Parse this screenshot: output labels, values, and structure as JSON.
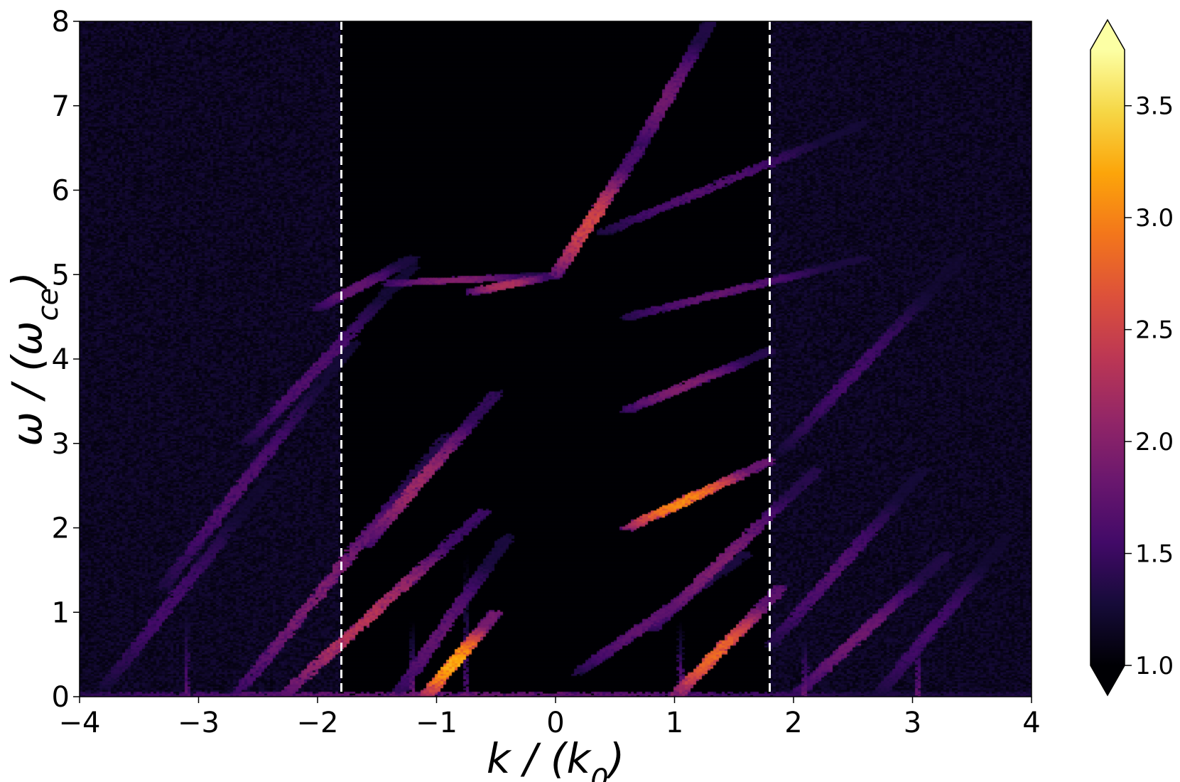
{
  "chart_data": {
    "type": "heatmap",
    "title": "",
    "xlabel": "k / (k_0)",
    "ylabel": "ω / (ω_ce)",
    "xlim": [
      -4,
      4
    ],
    "ylim": [
      0,
      8
    ],
    "x_ticks": [
      -4,
      -3,
      -2,
      -1,
      0,
      1,
      2,
      3,
      4
    ],
    "x_tick_labels": [
      "−4",
      "−3",
      "−2",
      "−1",
      "0",
      "1",
      "2",
      "3",
      "4"
    ],
    "y_ticks": [
      0,
      1,
      2,
      3,
      4,
      5,
      6,
      7,
      8
    ],
    "y_tick_labels": [
      "0",
      "1",
      "2",
      "3",
      "4",
      "5",
      "6",
      "7",
      "8"
    ],
    "colorbar": {
      "colormap": "inferno",
      "vmin": 1.0,
      "vmax": 3.75,
      "extend": "both",
      "ticks": [
        1.0,
        1.5,
        2.0,
        2.5,
        3.0,
        3.5
      ],
      "tick_labels": [
        "1.0",
        "1.5",
        "2.0",
        "2.5",
        "3.0",
        "3.5"
      ]
    },
    "vertical_lines": [
      {
        "x": -1.8,
        "style": "dashed",
        "color": "#ffffff"
      },
      {
        "x": 1.8,
        "style": "dashed",
        "color": "#ffffff"
      }
    ],
    "features": [
      {
        "kind": "line",
        "x0": -2.3,
        "y0": 0.0,
        "x1": -0.6,
        "y1": 2.2,
        "peak": 2.4
      },
      {
        "kind": "line",
        "x0": -2.7,
        "y0": 0.0,
        "x1": -0.9,
        "y1": 3.1,
        "peak": 2.0
      },
      {
        "kind": "line",
        "x0": -1.1,
        "y0": 0.0,
        "x1": -0.5,
        "y1": 1.0,
        "peak": 3.3
      },
      {
        "kind": "line",
        "x0": -1.35,
        "y0": 0.0,
        "x1": -0.4,
        "y1": 1.9,
        "peak": 1.8
      },
      {
        "kind": "line",
        "x0": -1.6,
        "y0": 1.8,
        "x1": -0.5,
        "y1": 3.6,
        "peak": 2.2
      },
      {
        "kind": "line",
        "x0": -3.3,
        "y0": 1.3,
        "x1": -1.7,
        "y1": 4.2,
        "peak": 1.7
      },
      {
        "kind": "line",
        "x0": -2.6,
        "y0": 3.0,
        "x1": -1.2,
        "y1": 5.1,
        "peak": 1.7
      },
      {
        "kind": "line",
        "x0": -2.0,
        "y0": 4.6,
        "x1": -1.2,
        "y1": 5.2,
        "peak": 1.8
      },
      {
        "kind": "line",
        "x0": -1.4,
        "y0": 4.9,
        "x1": 0.0,
        "y1": 5.0,
        "peak": 2.0
      },
      {
        "kind": "line",
        "x0": -0.7,
        "y0": 4.8,
        "x1": 0.0,
        "y1": 5.0,
        "peak": 2.3
      },
      {
        "kind": "line",
        "x0": 0.0,
        "y0": 5.0,
        "x1": 0.7,
        "y1": 6.5,
        "peak": 2.6
      },
      {
        "kind": "line",
        "x0": 0.7,
        "y0": 6.5,
        "x1": 1.3,
        "y1": 8.0,
        "peak": 1.9
      },
      {
        "kind": "line",
        "x0": 0.6,
        "y0": 2.0,
        "x1": 1.8,
        "y1": 2.8,
        "peak": 3.1
      },
      {
        "kind": "line",
        "x0": 0.6,
        "y0": 3.4,
        "x1": 1.8,
        "y1": 4.1,
        "peak": 2.0
      },
      {
        "kind": "line",
        "x0": 0.6,
        "y0": 4.5,
        "x1": 2.6,
        "y1": 5.2,
        "peak": 1.8
      },
      {
        "kind": "line",
        "x0": 0.4,
        "y0": 5.5,
        "x1": 2.6,
        "y1": 6.8,
        "peak": 1.7
      },
      {
        "kind": "line",
        "x0": 0.2,
        "y0": 0.3,
        "x1": 1.6,
        "y1": 1.7,
        "peak": 1.8
      },
      {
        "kind": "line",
        "x0": 0.8,
        "y0": 0.8,
        "x1": 2.2,
        "y1": 2.7,
        "peak": 2.0
      },
      {
        "kind": "line",
        "x0": 1.0,
        "y0": 0.0,
        "x1": 1.9,
        "y1": 1.3,
        "peak": 2.9
      },
      {
        "kind": "line",
        "x0": 1.8,
        "y0": 0.6,
        "x1": 3.1,
        "y1": 2.7,
        "peak": 1.7
      },
      {
        "kind": "line",
        "x0": 2.0,
        "y0": 0.0,
        "x1": 3.3,
        "y1": 1.7,
        "peak": 1.9
      },
      {
        "kind": "line",
        "x0": 1.9,
        "y0": 2.9,
        "x1": 3.4,
        "y1": 5.2,
        "peak": 1.6
      },
      {
        "kind": "line",
        "x0": 2.7,
        "y0": 0.0,
        "x1": 3.8,
        "y1": 1.9,
        "peak": 1.6
      },
      {
        "kind": "line",
        "x0": -3.8,
        "y0": 0.1,
        "x1": -2.4,
        "y1": 2.6,
        "peak": 1.6
      },
      {
        "kind": "band",
        "x0": -4.0,
        "y0": 0.02,
        "x1": 4.0,
        "y1": 0.02,
        "peak": 1.9
      },
      {
        "kind": "spike",
        "x": -3.1,
        "y0": 0.0,
        "y1": 1.3,
        "peak": 1.8
      },
      {
        "kind": "spike",
        "x": -1.2,
        "y0": 0.0,
        "y1": 0.9,
        "peak": 2.0
      },
      {
        "kind": "spike",
        "x": -0.75,
        "y0": 0.0,
        "y1": 1.7,
        "peak": 1.8
      },
      {
        "kind": "spike",
        "x": 1.05,
        "y0": 0.0,
        "y1": 0.9,
        "peak": 2.0
      },
      {
        "kind": "spike",
        "x": 2.1,
        "y0": 0.0,
        "y1": 0.9,
        "peak": 1.9
      },
      {
        "kind": "spike",
        "x": 3.05,
        "y0": 0.0,
        "y1": 1.0,
        "peak": 1.9
      }
    ]
  }
}
